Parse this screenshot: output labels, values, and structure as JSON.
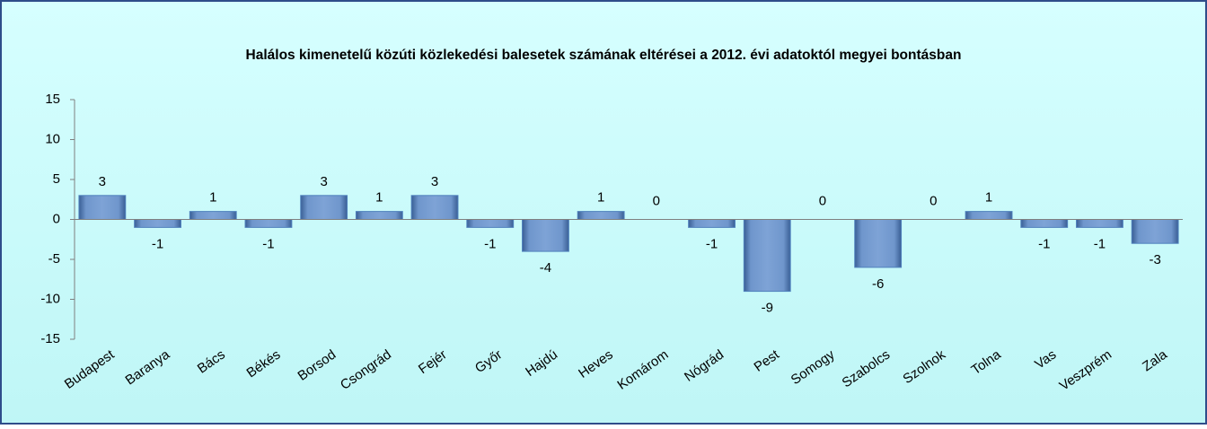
{
  "chart_data": {
    "type": "bar",
    "title": "Halálos kimenetelű közúti közlekedési balesetek számának eltérései a 2012. évi adatoktól megyei bontásban",
    "categories": [
      "Budapest",
      "Baranya",
      "Bács",
      "Békés",
      "Borsod",
      "Csongrád",
      "Fejér",
      "Győr",
      "Hajdú",
      "Heves",
      "Komárom",
      "Nógrád",
      "Pest",
      "Somogy",
      "Szabolcs",
      "Szolnok",
      "Tolna",
      "Vas",
      "Veszprém",
      "Zala"
    ],
    "values": [
      3,
      -1,
      1,
      -1,
      3,
      1,
      3,
      -1,
      -4,
      1,
      0,
      -1,
      -9,
      0,
      -6,
      0,
      1,
      -1,
      -1,
      -3
    ],
    "color": "#4f81bd",
    "ylim": [
      -15,
      15
    ],
    "yticks": [
      -15,
      -10,
      -5,
      0,
      5,
      10,
      15
    ],
    "grid": false
  }
}
